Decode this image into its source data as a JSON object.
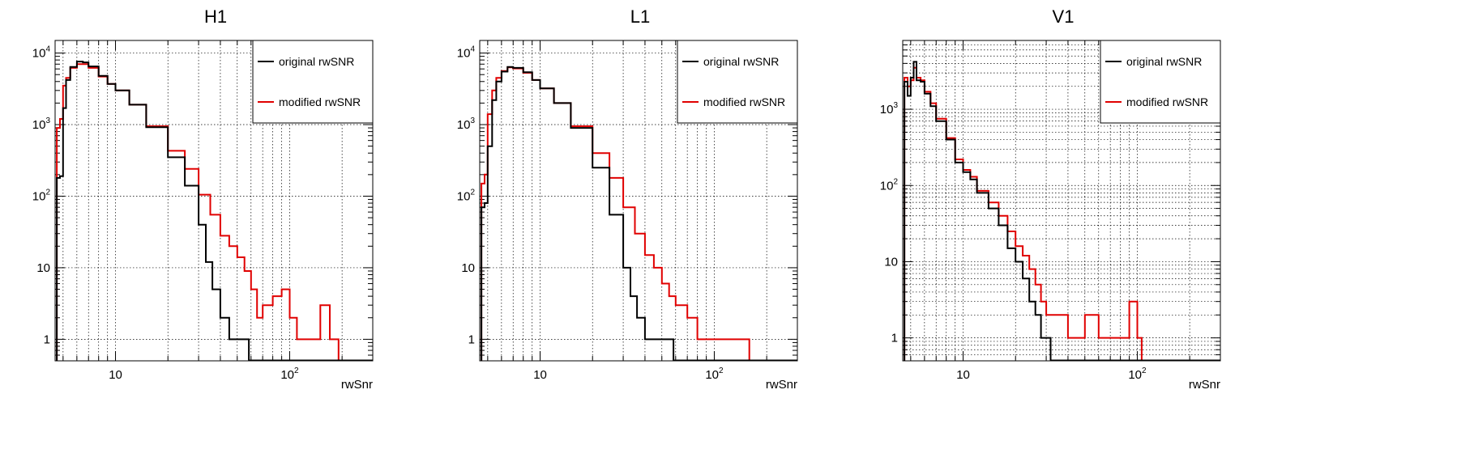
{
  "colors": {
    "original": "#000000",
    "modified": "#e00000",
    "grid": "#000000"
  },
  "chart_data": [
    {
      "type": "step",
      "title": "H1",
      "xlabel": "rwSnr",
      "ylabel": "",
      "xscale": "log",
      "yscale": "log",
      "xlim": [
        4.5,
        300
      ],
      "ylim": [
        0.5,
        15000
      ],
      "grid": true,
      "legend_position": "top-right",
      "series": [
        {
          "name": "original rwSNR",
          "points": [
            [
              4.6,
              180
            ],
            [
              4.8,
              190
            ],
            [
              5.0,
              1700
            ],
            [
              5.2,
              4200
            ],
            [
              5.5,
              6400
            ],
            [
              6.0,
              7600
            ],
            [
              6.5,
              7400
            ],
            [
              7.0,
              6500
            ],
            [
              8.0,
              4800
            ],
            [
              9.0,
              3700
            ],
            [
              10,
              3000
            ],
            [
              12,
              1900
            ],
            [
              15,
              920
            ],
            [
              20,
              350
            ],
            [
              25,
              140
            ],
            [
              30,
              40
            ],
            [
              33,
              12
            ],
            [
              36,
              5
            ],
            [
              40,
              2
            ],
            [
              45,
              1
            ],
            [
              50,
              1
            ],
            [
              55,
              1
            ]
          ]
        },
        {
          "name": "modified rwSNR",
          "points": [
            [
              4.6,
              900
            ],
            [
              4.8,
              1200
            ],
            [
              5.0,
              3500
            ],
            [
              5.2,
              4500
            ],
            [
              5.5,
              6200
            ],
            [
              6.0,
              7000
            ],
            [
              6.5,
              7000
            ],
            [
              7.0,
              6200
            ],
            [
              8.0,
              4700
            ],
            [
              9.0,
              3700
            ],
            [
              10,
              3000
            ],
            [
              12,
              1900
            ],
            [
              15,
              950
            ],
            [
              20,
              430
            ],
            [
              25,
              240
            ],
            [
              30,
              105
            ],
            [
              35,
              55
            ],
            [
              40,
              28
            ],
            [
              45,
              20
            ],
            [
              50,
              14
            ],
            [
              55,
              9
            ],
            [
              60,
              5
            ],
            [
              65,
              2
            ],
            [
              70,
              3
            ],
            [
              80,
              4
            ],
            [
              90,
              5
            ],
            [
              100,
              2
            ],
            [
              110,
              1
            ],
            [
              130,
              1
            ],
            [
              150,
              3
            ],
            [
              170,
              1
            ],
            [
              180,
              1
            ]
          ]
        }
      ]
    },
    {
      "type": "step",
      "title": "L1",
      "xlabel": "rwSnr",
      "ylabel": "",
      "xscale": "log",
      "yscale": "log",
      "xlim": [
        4.5,
        300
      ],
      "ylim": [
        0.5,
        15000
      ],
      "grid": true,
      "legend_position": "top-right",
      "series": [
        {
          "name": "original rwSNR",
          "points": [
            [
              4.6,
              70
            ],
            [
              4.8,
              80
            ],
            [
              5.0,
              500
            ],
            [
              5.3,
              2200
            ],
            [
              5.6,
              4000
            ],
            [
              6.0,
              5500
            ],
            [
              6.5,
              6400
            ],
            [
              7.0,
              6200
            ],
            [
              8.0,
              5400
            ],
            [
              9.0,
              4200
            ],
            [
              10,
              3200
            ],
            [
              12,
              2000
            ],
            [
              15,
              900
            ],
            [
              20,
              250
            ],
            [
              25,
              55
            ],
            [
              30,
              10
            ],
            [
              33,
              4
            ],
            [
              36,
              2
            ],
            [
              40,
              1
            ],
            [
              45,
              1
            ],
            [
              50,
              1
            ],
            [
              55,
              1
            ]
          ]
        },
        {
          "name": "modified rwSNR",
          "points": [
            [
              4.6,
              150
            ],
            [
              4.8,
              200
            ],
            [
              5.0,
              1400
            ],
            [
              5.3,
              3000
            ],
            [
              5.6,
              4500
            ],
            [
              6.0,
              5600
            ],
            [
              6.5,
              6300
            ],
            [
              7.0,
              6100
            ],
            [
              8.0,
              5300
            ],
            [
              9.0,
              4200
            ],
            [
              10,
              3200
            ],
            [
              12,
              2000
            ],
            [
              15,
              950
            ],
            [
              20,
              400
            ],
            [
              25,
              180
            ],
            [
              30,
              70
            ],
            [
              35,
              30
            ],
            [
              40,
              15
            ],
            [
              45,
              10
            ],
            [
              50,
              6
            ],
            [
              55,
              4
            ],
            [
              60,
              3
            ],
            [
              70,
              2
            ],
            [
              80,
              1
            ],
            [
              90,
              1
            ],
            [
              100,
              1
            ],
            [
              120,
              1
            ],
            [
              150,
              1
            ]
          ]
        }
      ]
    },
    {
      "type": "step",
      "title": "V1",
      "xlabel": "rwSnr",
      "ylabel": "",
      "xscale": "log",
      "yscale": "log",
      "xlim": [
        4.5,
        300
      ],
      "ylim": [
        0.5,
        8000
      ],
      "grid": true,
      "legend_position": "top-right",
      "series": [
        {
          "name": "original rwSNR",
          "points": [
            [
              4.6,
              2300
            ],
            [
              4.8,
              1500
            ],
            [
              5.0,
              2600
            ],
            [
              5.2,
              4200
            ],
            [
              5.4,
              2400
            ],
            [
              5.7,
              2300
            ],
            [
              6.0,
              1600
            ],
            [
              6.5,
              1100
            ],
            [
              7.0,
              700
            ],
            [
              8.0,
              400
            ],
            [
              9.0,
              200
            ],
            [
              10,
              150
            ],
            [
              11,
              120
            ],
            [
              12,
              80
            ],
            [
              14,
              50
            ],
            [
              16,
              30
            ],
            [
              18,
              15
            ],
            [
              20,
              10
            ],
            [
              22,
              6
            ],
            [
              24,
              3
            ],
            [
              26,
              2
            ],
            [
              28,
              1
            ],
            [
              30,
              1
            ]
          ]
        },
        {
          "name": "modified rwSNR",
          "points": [
            [
              4.6,
              2600
            ],
            [
              4.8,
              2000
            ],
            [
              5.0,
              2400
            ],
            [
              5.2,
              3500
            ],
            [
              5.4,
              2600
            ],
            [
              5.7,
              2400
            ],
            [
              6.0,
              1700
            ],
            [
              6.5,
              1200
            ],
            [
              7.0,
              750
            ],
            [
              8.0,
              420
            ],
            [
              9.0,
              220
            ],
            [
              10,
              160
            ],
            [
              11,
              130
            ],
            [
              12,
              85
            ],
            [
              14,
              60
            ],
            [
              16,
              40
            ],
            [
              18,
              25
            ],
            [
              20,
              16
            ],
            [
              22,
              12
            ],
            [
              24,
              8
            ],
            [
              26,
              5
            ],
            [
              28,
              3
            ],
            [
              30,
              2
            ],
            [
              35,
              2
            ],
            [
              40,
              1
            ],
            [
              50,
              2
            ],
            [
              60,
              1
            ],
            [
              70,
              1
            ],
            [
              80,
              1
            ],
            [
              90,
              3
            ],
            [
              100,
              1
            ]
          ]
        }
      ]
    }
  ]
}
